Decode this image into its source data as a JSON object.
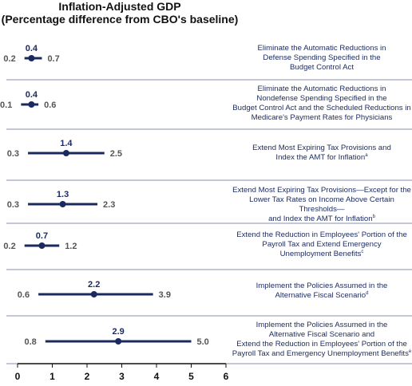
{
  "chart_data": {
    "type": "dot-range",
    "title": "Inflation-Adjusted GDP",
    "subtitle": "(Percentage difference from CBO's baseline)",
    "xlim": [
      0,
      6
    ],
    "xticks": [
      "0",
      "1",
      "2",
      "3",
      "4",
      "5",
      "6"
    ],
    "grid": false,
    "colors": {
      "line": "#1b2a5e",
      "point": "#1b2a5e",
      "text": "#1b2a5e",
      "range_label": "#555555",
      "divider": "#8a8fb0"
    },
    "rows": [
      {
        "label": "Eliminate the Automatic Reductions in Defense Spending Specified in the Budget Control Act",
        "label_lines": [
          "Eliminate the Automatic Reductions in",
          "Defense Spending Specified in the",
          "Budget Control Act"
        ],
        "label_note": "",
        "low": 0.2,
        "mid": 0.4,
        "high": 0.7,
        "low_label": "0.2",
        "mid_label": "0.4",
        "high_label": "0.7"
      },
      {
        "label": "Eliminate the Automatic Reductions in Nondefense Spending Specified in the Budget Control Act and the Scheduled Reductions in Medicare's Payment Rates for Physicians",
        "label_lines": [
          "Eliminate the Automatic Reductions in",
          "Nondefense Spending Specified in the",
          "Budget Control Act and the Scheduled Reductions in",
          "Medicare's Payment Rates for Physicians"
        ],
        "label_note": "",
        "low": 0.1,
        "mid": 0.4,
        "high": 0.6,
        "low_label": "0.1",
        "mid_label": "0.4",
        "high_label": "0.6"
      },
      {
        "label": "Extend Most Expiring Tax Provisions and Index the AMT for Inflation",
        "label_lines": [
          "Extend Most Expiring Tax Provisions and",
          "Index the AMT for Inflation"
        ],
        "label_note": "a",
        "low": 0.3,
        "mid": 1.4,
        "high": 2.5,
        "low_label": "0.3",
        "mid_label": "1.4",
        "high_label": "2.5"
      },
      {
        "label": "Extend Most Expiring Tax Provisions—Except for the Lower Tax Rates on Income Above Certain Thresholds—and Index the AMT for Inflation",
        "label_lines": [
          "Extend Most Expiring Tax Provisions—Except for the",
          "Lower Tax Rates on Income Above Certain Thresholds—",
          "and Index the AMT for Inflation"
        ],
        "label_note": "b",
        "low": 0.3,
        "mid": 1.3,
        "high": 2.3,
        "low_label": "0.3",
        "mid_label": "1.3",
        "high_label": "2.3"
      },
      {
        "label": "Extend the Reduction in Employees' Portion of the Payroll Tax and Extend Emergency Unemployment Benefits",
        "label_lines": [
          "Extend the Reduction in Employees' Portion of the",
          "Payroll Tax and Extend Emergency",
          "Unemployment Benefits"
        ],
        "label_note": "c",
        "low": 0.2,
        "mid": 0.7,
        "high": 1.2,
        "low_label": "0.2",
        "mid_label": "0.7",
        "high_label": "1.2"
      },
      {
        "label": "Implement the Policies Assumed in the Alternative Fiscal Scenario",
        "label_lines": [
          "Implement the Policies Assumed in the",
          "Alternative Fiscal Scenario"
        ],
        "label_note": "d",
        "low": 0.6,
        "mid": 2.2,
        "high": 3.9,
        "low_label": "0.6",
        "mid_label": "2.2",
        "high_label": "3.9"
      },
      {
        "label": "Implement the Policies Assumed in the Alternative Fiscal Scenario and Extend the Reduction in Employees' Portion of the Payroll Tax and Emergency Unemployment Benefits",
        "label_lines": [
          "Implement the Policies Assumed in the",
          "Alternative Fiscal Scenario and",
          "Extend the Reduction in Employees' Portion of the",
          "Payroll Tax and Emergency Unemployment Benefits"
        ],
        "label_note": "e",
        "low": 0.8,
        "mid": 2.9,
        "high": 5.0,
        "low_label": "0.8",
        "mid_label": "2.9",
        "high_label": "5.0"
      }
    ]
  }
}
